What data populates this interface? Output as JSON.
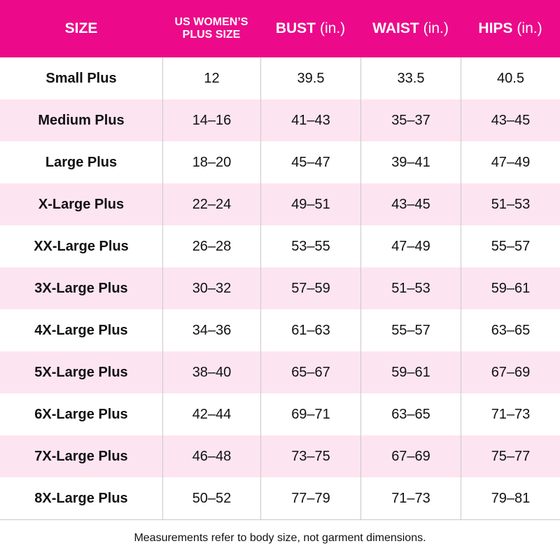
{
  "table": {
    "header": [
      {
        "text": "SIZE"
      },
      {
        "lines": [
          "US WOMEN’S",
          "PLUS SIZE"
        ]
      },
      {
        "text": "BUST",
        "unit": "(in.)"
      },
      {
        "text": "WAIST",
        "unit": "(in.)"
      },
      {
        "text": "HIPS",
        "unit": "(in.)"
      }
    ],
    "rows": [
      [
        "Small Plus",
        "12",
        "39.5",
        "33.5",
        "40.5"
      ],
      [
        "Medium Plus",
        "14–16",
        "41–43",
        "35–37",
        "43–45"
      ],
      [
        "Large Plus",
        "18–20",
        "45–47",
        "39–41",
        "47–49"
      ],
      [
        "X-Large Plus",
        "22–24",
        "49–51",
        "43–45",
        "51–53"
      ],
      [
        "XX-Large Plus",
        "26–28",
        "53–55",
        "47–49",
        "55–57"
      ],
      [
        "3X-Large Plus",
        "30–32",
        "57–59",
        "51–53",
        "59–61"
      ],
      [
        "4X-Large Plus",
        "34–36",
        "61–63",
        "55–57",
        "63–65"
      ],
      [
        "5X-Large Plus",
        "38–40",
        "65–67",
        "59–61",
        "67–69"
      ],
      [
        "6X-Large Plus",
        "42–44",
        "69–71",
        "63–65",
        "71–73"
      ],
      [
        "7X-Large Plus",
        "46–48",
        "73–75",
        "67–69",
        "75–77"
      ],
      [
        "8X-Large Plus",
        "50–52",
        "77–79",
        "71–73",
        "79–81"
      ]
    ]
  },
  "footnote": "Measurements refer to body size, not garment dimensions."
}
